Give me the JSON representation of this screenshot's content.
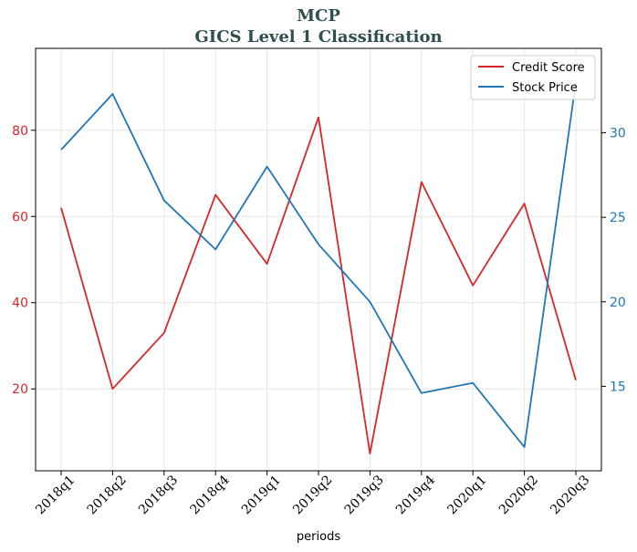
{
  "chart_data": {
    "type": "line",
    "title": "MCP",
    "subtitle": "GICS Level 1 Classification",
    "xlabel": "periods",
    "categories": [
      "2018q1",
      "2018q2",
      "2018q3",
      "2018q4",
      "2019q1",
      "2019q2",
      "2019q3",
      "2019q4",
      "2020q1",
      "2020q2",
      "2020q3"
    ],
    "series": [
      {
        "name": "Credit Score",
        "axis": "left",
        "color": "#d62728",
        "values": [
          62,
          20,
          33,
          65,
          49,
          83,
          5,
          68,
          44,
          63,
          22
        ]
      },
      {
        "name": "Stock Price",
        "axis": "right",
        "color": "#1f77b4",
        "values": [
          29.0,
          32.3,
          26.0,
          23.1,
          28.0,
          23.4,
          20.0,
          14.6,
          15.2,
          11.4,
          33.0
        ]
      }
    ],
    "y_left": {
      "ylim": [
        1,
        99
      ],
      "ticks": [
        20,
        40,
        60,
        80
      ],
      "color": "#d62728"
    },
    "y_right": {
      "ylim": [
        10,
        35
      ],
      "ticks": [
        15,
        20,
        25,
        30
      ],
      "color": "#1f77b4"
    },
    "grid": true,
    "legend_position": "top-right"
  }
}
